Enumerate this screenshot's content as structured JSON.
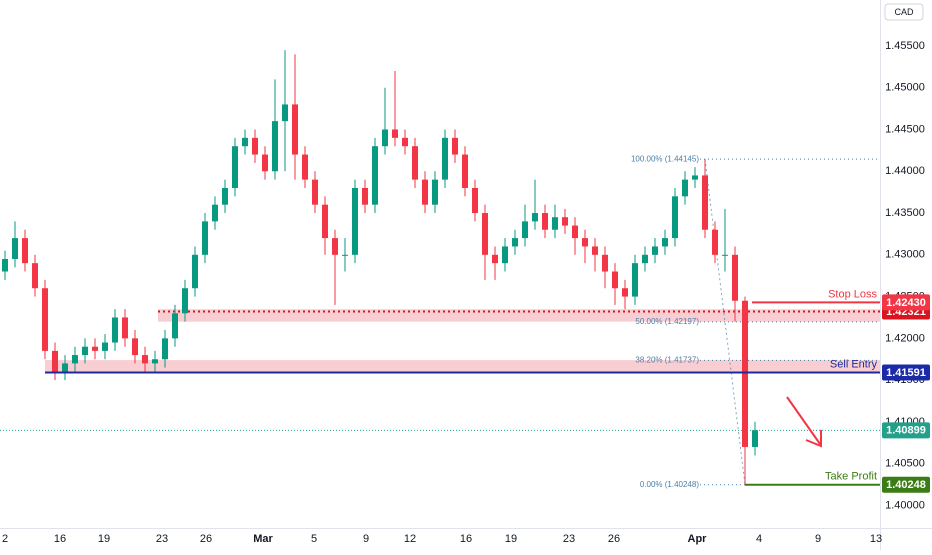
{
  "chart_data": {
    "type": "candlestick",
    "currency": "CAD",
    "up_color": "#089981",
    "down_color": "#f23645",
    "xlim": [
      0,
      880
    ],
    "ylim": [
      1.3973,
      1.4605
    ],
    "xticks": [
      {
        "value": 5,
        "label": "2"
      },
      {
        "value": 60,
        "label": "16"
      },
      {
        "value": 104,
        "label": "19"
      },
      {
        "value": 162,
        "label": "23"
      },
      {
        "value": 206,
        "label": "26"
      },
      {
        "value": 263,
        "label": "Mar"
      },
      {
        "value": 314,
        "label": "5"
      },
      {
        "value": 366,
        "label": "9"
      },
      {
        "value": 410,
        "label": "12"
      },
      {
        "value": 466,
        "label": "16"
      },
      {
        "value": 511,
        "label": "19"
      },
      {
        "value": 569,
        "label": "23"
      },
      {
        "value": 614,
        "label": "26"
      },
      {
        "value": 697,
        "label": "Apr"
      },
      {
        "value": 759,
        "label": "4"
      },
      {
        "value": 818,
        "label": "9"
      },
      {
        "value": 876,
        "label": "13"
      }
    ],
    "yticks": [
      {
        "value": 1.4,
        "label": "1.40000"
      },
      {
        "value": 1.405,
        "label": "1.40500"
      },
      {
        "value": 1.41,
        "label": "1.41000"
      },
      {
        "value": 1.415,
        "label": "1.41500"
      },
      {
        "value": 1.42,
        "label": "1.42000"
      },
      {
        "value": 1.425,
        "label": "1.42500"
      },
      {
        "value": 1.43,
        "label": "1.43000"
      },
      {
        "value": 1.435,
        "label": "1.43500"
      },
      {
        "value": 1.44,
        "label": "1.44000"
      },
      {
        "value": 1.445,
        "label": "1.44500"
      },
      {
        "value": 1.45,
        "label": "1.45000"
      },
      {
        "value": 1.455,
        "label": "1.45500"
      }
    ],
    "x": [
      5,
      15,
      25,
      35,
      45,
      55,
      65,
      75,
      85,
      95,
      105,
      115,
      125,
      135,
      145,
      155,
      165,
      175,
      185,
      195,
      205,
      215,
      225,
      235,
      245,
      255,
      265,
      275,
      285,
      295,
      305,
      315,
      325,
      335,
      345,
      355,
      365,
      375,
      385,
      395,
      405,
      415,
      425,
      435,
      445,
      455,
      465,
      475,
      485,
      495,
      505,
      515,
      525,
      535,
      545,
      555,
      565,
      575,
      585,
      595,
      605,
      615,
      625,
      635,
      645,
      655,
      665,
      675,
      685,
      695,
      705,
      715,
      725,
      735,
      745,
      755
    ],
    "open": [
      1.428,
      1.4295,
      1.432,
      1.429,
      1.426,
      1.4185,
      1.416,
      1.417,
      1.418,
      1.419,
      1.4185,
      1.4195,
      1.4225,
      1.42,
      1.418,
      1.417,
      1.4175,
      1.42,
      1.423,
      1.426,
      1.43,
      1.434,
      1.436,
      1.438,
      1.443,
      1.444,
      1.442,
      1.44,
      1.446,
      1.448,
      1.442,
      1.439,
      1.436,
      1.432,
      1.43,
      1.43,
      1.438,
      1.436,
      1.443,
      1.445,
      1.444,
      1.443,
      1.439,
      1.436,
      1.439,
      1.444,
      1.442,
      1.438,
      1.435,
      1.43,
      1.429,
      1.431,
      1.432,
      1.434,
      1.435,
      1.433,
      1.4345,
      1.4335,
      1.432,
      1.431,
      1.43,
      1.428,
      1.426,
      1.425,
      1.429,
      1.43,
      1.431,
      1.432,
      1.437,
      1.439,
      1.4395,
      1.433,
      1.43,
      1.43,
      1.4245,
      1.407
    ],
    "high": [
      1.4305,
      1.434,
      1.433,
      1.43,
      1.427,
      1.4195,
      1.418,
      1.419,
      1.42,
      1.42,
      1.4205,
      1.4235,
      1.4235,
      1.421,
      1.419,
      1.4185,
      1.421,
      1.424,
      1.427,
      1.431,
      1.435,
      1.437,
      1.439,
      1.444,
      1.445,
      1.445,
      1.443,
      1.451,
      1.4545,
      1.454,
      1.443,
      1.44,
      1.437,
      1.433,
      1.432,
      1.439,
      1.439,
      1.444,
      1.45,
      1.452,
      1.445,
      1.444,
      1.44,
      1.44,
      1.445,
      1.445,
      1.443,
      1.439,
      1.436,
      1.431,
      1.432,
      1.433,
      1.436,
      1.439,
      1.436,
      1.436,
      1.4355,
      1.4345,
      1.433,
      1.432,
      1.431,
      1.429,
      1.427,
      1.43,
      1.431,
      1.432,
      1.433,
      1.438,
      1.44,
      1.4405,
      1.44145,
      1.434,
      1.4355,
      1.431,
      1.425,
      1.41
    ],
    "low": [
      1.427,
      1.4285,
      1.428,
      1.425,
      1.4175,
      1.415,
      1.415,
      1.416,
      1.417,
      1.4175,
      1.4175,
      1.4185,
      1.419,
      1.417,
      1.416,
      1.416,
      1.4165,
      1.419,
      1.422,
      1.425,
      1.429,
      1.433,
      1.435,
      1.437,
      1.442,
      1.441,
      1.439,
      1.439,
      1.44,
      1.439,
      1.438,
      1.435,
      1.43,
      1.424,
      1.428,
      1.429,
      1.435,
      1.435,
      1.442,
      1.443,
      1.442,
      1.438,
      1.435,
      1.435,
      1.438,
      1.441,
      1.437,
      1.434,
      1.427,
      1.427,
      1.428,
      1.43,
      1.431,
      1.433,
      1.432,
      1.432,
      1.4325,
      1.43,
      1.429,
      1.428,
      1.426,
      1.424,
      1.4235,
      1.424,
      1.428,
      1.429,
      1.43,
      1.431,
      1.436,
      1.438,
      1.432,
      1.429,
      1.428,
      1.422,
      1.40248,
      1.406
    ],
    "close": [
      1.4295,
      1.432,
      1.429,
      1.426,
      1.4185,
      1.416,
      1.417,
      1.418,
      1.419,
      1.4185,
      1.4195,
      1.4225,
      1.42,
      1.418,
      1.417,
      1.4175,
      1.42,
      1.423,
      1.426,
      1.43,
      1.434,
      1.436,
      1.438,
      1.443,
      1.444,
      1.442,
      1.44,
      1.446,
      1.448,
      1.442,
      1.439,
      1.436,
      1.432,
      1.43,
      1.43,
      1.438,
      1.436,
      1.443,
      1.445,
      1.444,
      1.443,
      1.439,
      1.436,
      1.439,
      1.444,
      1.442,
      1.438,
      1.435,
      1.43,
      1.429,
      1.431,
      1.432,
      1.434,
      1.435,
      1.433,
      1.4345,
      1.4335,
      1.432,
      1.431,
      1.43,
      1.428,
      1.426,
      1.425,
      1.429,
      1.43,
      1.431,
      1.432,
      1.437,
      1.439,
      1.4395,
      1.433,
      1.43,
      1.43,
      1.4245,
      1.407,
      1.409
    ],
    "zones": [
      {
        "low": 1.422,
        "high": 1.4235,
        "color": "#f7c6cb"
      },
      {
        "low": 1.4158,
        "high": 1.4174,
        "color": "#f7c6cb"
      }
    ],
    "fib_levels": [
      {
        "value": 1.44145,
        "label": "100.00% (1.44145)"
      },
      {
        "value": 1.42197,
        "label": "50.00% (1.42197)"
      },
      {
        "value": 1.41737,
        "label": "38.20% (1.41737)"
      },
      {
        "value": 1.40248,
        "label": "0.00% (1.40248)"
      }
    ],
    "fib_color": "#4a7fa7",
    "levels": [
      {
        "name": "Stop Loss",
        "value": 1.4243,
        "color": "#f23645"
      },
      {
        "name": "Sell Entry",
        "value": 1.41591,
        "color": "#1e2a9a"
      },
      {
        "name": "Take Profit",
        "value": 1.40248,
        "color": "#3a7d14"
      }
    ],
    "current_price": 1.40899,
    "price_tags": [
      {
        "value": 1.42321,
        "label": "1.42321",
        "color": "#d9141f"
      },
      {
        "value": 1.4243,
        "label": "1.42430",
        "color": "#f23645"
      },
      {
        "value": 1.41591,
        "label": "1.41591",
        "color": "#1b2aa8"
      },
      {
        "value": 1.40899,
        "label": "1.40899",
        "color": "#22a08a"
      },
      {
        "value": 1.40248,
        "label": "1.40248",
        "color": "#3a7d14"
      }
    ]
  }
}
